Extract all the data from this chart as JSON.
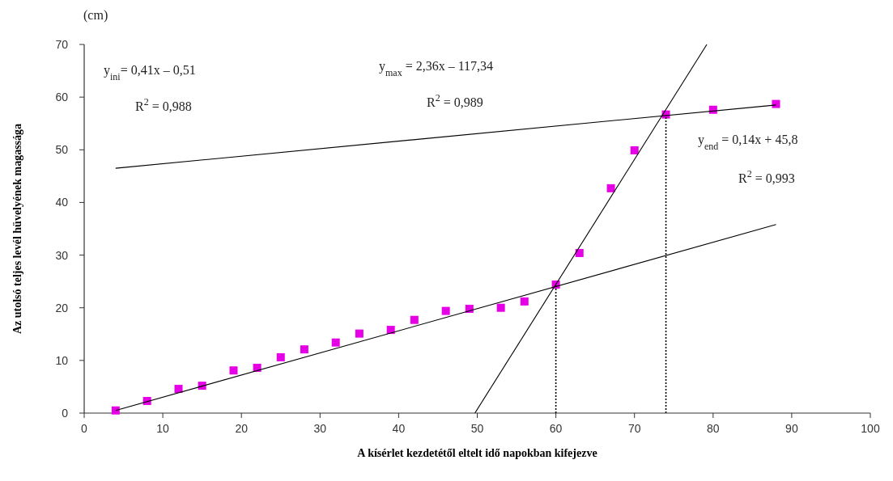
{
  "chart_data": {
    "type": "scatter",
    "xlabel": "A kísérlet kezdetétől eltelt idő napokban kifejezve",
    "ylabel": "Az utolsó teljes levél hüvelyének magassága",
    "xlim": [
      0,
      100
    ],
    "xticks": [
      0,
      10,
      20,
      30,
      40,
      50,
      60,
      70,
      80,
      90,
      100
    ],
    "ylim": [
      0,
      70
    ],
    "yticks": [
      0,
      10,
      20,
      30,
      40,
      50,
      60,
      70
    ],
    "grid": false,
    "series": [
      {
        "marker": "square",
        "color": "#e600e6",
        "x": [
          4,
          8,
          12,
          15,
          19,
          22,
          25,
          28,
          32,
          35,
          39,
          42,
          46,
          49,
          53,
          56,
          60,
          63,
          67,
          70,
          74,
          80,
          88
        ],
        "values": [
          0.5,
          2.3,
          4.6,
          5.2,
          8.1,
          8.6,
          10.6,
          12.1,
          13.4,
          15.1,
          15.8,
          17.7,
          19.4,
          19.8,
          20.0,
          21.2,
          24.4,
          30.4,
          42.7,
          49.9,
          56.7,
          57.6,
          58.7
        ]
      },
      {
        "type": "line",
        "color": "#000000",
        "line_style": "solid",
        "marker": "none",
        "x": [
          4,
          88
        ],
        "values": [
          0.5,
          35.8
        ]
      },
      {
        "type": "line",
        "color": "#000000",
        "line_style": "solid",
        "marker": "none",
        "x": [
          49.7,
          79.2
        ],
        "values": [
          0,
          70
        ]
      },
      {
        "type": "line",
        "color": "#000000",
        "line_style": "solid",
        "marker": "none",
        "x": [
          4,
          88
        ],
        "values": [
          46.5,
          58.5
        ]
      },
      {
        "type": "line",
        "color": "#000000",
        "line_style": "dotted",
        "marker": "none",
        "x": [
          60,
          60
        ],
        "values": [
          0,
          24.4
        ]
      },
      {
        "type": "line",
        "color": "#000000",
        "line_style": "dotted",
        "marker": "none",
        "x": [
          74,
          74
        ],
        "values": [
          0,
          56.6
        ]
      }
    ],
    "annotations": [
      "y$_{ini}$= 0,41x – 0,51",
      "R$^{2}$ = 0,988",
      "y$_{max}$ = 2,36x – 117,34",
      "R$^{2}$ = 0,989",
      "y$_{end}$ = 0,14x + 45,8",
      "R$^{2}$ = 0,993",
      "(cm)"
    ]
  }
}
